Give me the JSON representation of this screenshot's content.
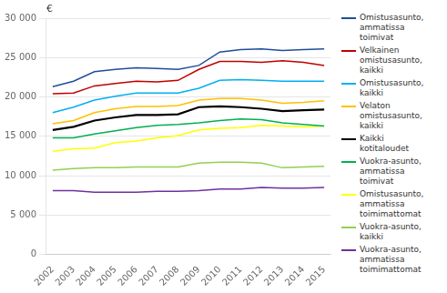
{
  "chart_data": {
    "type": "line",
    "ylabel": "€",
    "x": [
      2002,
      2003,
      2004,
      2005,
      2006,
      2007,
      2008,
      2009,
      2010,
      2011,
      2012,
      2013,
      2014,
      2015
    ],
    "xlim": [
      2001.7,
      2015.3
    ],
    "xticks": [
      2002,
      2003,
      2004,
      2005,
      2006,
      2007,
      2008,
      2009,
      2010,
      2011,
      2012,
      2013,
      2014,
      2015
    ],
    "ylim": [
      0,
      30000
    ],
    "yticks": [
      0,
      {
        "value": 5000,
        "label": "5 000"
      },
      {
        "value": 10000,
        "label": "10 000"
      },
      {
        "value": 15000,
        "label": "15 000"
      },
      {
        "value": 20000,
        "label": "20 000"
      },
      {
        "value": 25000,
        "label": "25 000"
      },
      {
        "value": 30000,
        "label": "30 000"
      }
    ],
    "grid": "y",
    "legend": "right",
    "series": [
      {
        "name": "Omistusasunto,\nammatissa\ntoimivat",
        "color": "#1f4e99",
        "values": [
          21300,
          22000,
          23200,
          23500,
          23700,
          23600,
          23500,
          24000,
          25700,
          26000,
          26100,
          25900,
          26000,
          26100
        ]
      },
      {
        "name": "Velkainen\nomistusasunto,\nkaikki",
        "color": "#c00000",
        "values": [
          20400,
          20500,
          21400,
          21700,
          22000,
          21900,
          22100,
          23500,
          24500,
          24500,
          24400,
          24600,
          24400,
          24000
        ]
      },
      {
        "name": "Omistusasunto,\nkaikki",
        "color": "#00b0f0",
        "values": [
          18000,
          18700,
          19600,
          20100,
          20500,
          20500,
          20500,
          21100,
          22100,
          22200,
          22100,
          22000,
          22000,
          22000
        ]
      },
      {
        "name": "Velaton\nomistusasunto,\nkaikki",
        "color": "#ffc000",
        "values": [
          16600,
          17000,
          18000,
          18500,
          18800,
          18800,
          18900,
          19600,
          19800,
          19800,
          19600,
          19200,
          19300,
          19500
        ]
      },
      {
        "name": "Kaikki\nkotitaloudet",
        "color": "#000000",
        "values": [
          15800,
          16200,
          17000,
          17400,
          17700,
          17700,
          17800,
          18700,
          18800,
          18700,
          18500,
          18200,
          18300,
          18400
        ]
      },
      {
        "name": "Vuokra-asunto,\nammatissa\ntoimivat",
        "color": "#00b050",
        "values": [
          14800,
          14800,
          15300,
          15700,
          16100,
          16400,
          16500,
          16700,
          17000,
          17200,
          17100,
          16700,
          16500,
          16300
        ]
      },
      {
        "name": "Omistusasunto,\nammatissa\ntoimimattomat",
        "color": "#ffff00",
        "values": [
          13100,
          13400,
          13500,
          14200,
          14400,
          14800,
          15100,
          15800,
          16000,
          16100,
          16400,
          16300,
          16200,
          16300
        ]
      },
      {
        "name": "Vuokra-asunto,\nkaikki",
        "color": "#92d050",
        "values": [
          10700,
          10900,
          11000,
          11000,
          11100,
          11100,
          11100,
          11600,
          11700,
          11700,
          11600,
          11000,
          11100,
          11200
        ]
      },
      {
        "name": "Vuokra-asunto,\nammatissa\ntoimimattomat",
        "color": "#7030a0",
        "values": [
          8100,
          8100,
          7900,
          7900,
          7900,
          8000,
          8000,
          8100,
          8300,
          8300,
          8500,
          8400,
          8400,
          8500
        ]
      }
    ]
  }
}
